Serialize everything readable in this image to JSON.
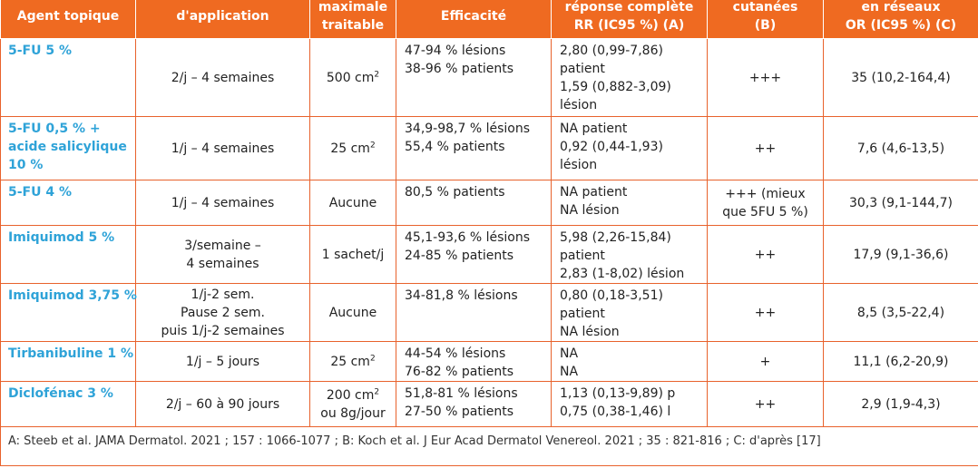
{
  "headers": [
    {
      "lines": [
        "Agent topique"
      ]
    },
    {
      "lines": [
        "d'application"
      ]
    },
    {
      "lines": [
        "maximale",
        "traitable"
      ]
    },
    {
      "lines": [
        "Efficacité"
      ]
    },
    {
      "lines": [
        "réponse complète",
        "RR (IC95 %) (A)"
      ]
    },
    {
      "lines": [
        "cutanées",
        "(B)"
      ]
    },
    {
      "lines": [
        "en réseaux",
        "OR (IC95 %) (C)"
      ]
    }
  ],
  "rows": [
    {
      "agent": [
        "5-FU 5 %"
      ],
      "posology": [
        "2/j – 4 semaines"
      ],
      "surface": {
        "value": "500 cm",
        "sup": "2",
        "extra": ""
      },
      "efficacy": [
        "47-94 % lésions",
        "38-96 % patients"
      ],
      "response": [
        "2,80 (0,99-7,86)",
        "patient",
        "1,59 (0,882-3,09)",
        "lésion"
      ],
      "skin": [
        "+++"
      ],
      "network": "35 (10,2-164,4)"
    },
    {
      "agent": [
        "5-FU 0,5 % +",
        "acide salicylique",
        "10 %"
      ],
      "posology": [
        "1/j – 4 semaines"
      ],
      "surface": {
        "value": "25 cm",
        "sup": "2",
        "extra": ""
      },
      "efficacy": [
        "34,9-98,7 % lésions",
        "55,4 % patients"
      ],
      "response": [
        "NA patient",
        "0,92 (0,44-1,93)",
        "lésion"
      ],
      "skin": [
        "++"
      ],
      "network": "7,6 (4,6-13,5)"
    },
    {
      "agent": [
        "5-FU 4 %"
      ],
      "posology": [
        "1/j – 4 semaines"
      ],
      "surface": {
        "value": "Aucune",
        "sup": "",
        "extra": ""
      },
      "efficacy": [
        "80,5 % patients"
      ],
      "response": [
        "NA patient",
        "NA lésion"
      ],
      "skin": [
        "+++ (mieux",
        "que 5FU 5 %)"
      ],
      "network": "30,3 (9,1-144,7)"
    },
    {
      "agent": [
        "Imiquimod 5 %"
      ],
      "posology": [
        "3/semaine –",
        "4 semaines"
      ],
      "surface": {
        "value": "1 sachet/j",
        "sup": "",
        "extra": ""
      },
      "efficacy": [
        "45,1-93,6 % lésions",
        "24-85 % patients"
      ],
      "response": [
        "5,98 (2,26-15,84)",
        "patient",
        "2,83 (1-8,02) lésion"
      ],
      "skin": [
        "++"
      ],
      "network": "17,9 (9,1-36,6)"
    },
    {
      "agent": [
        "Imiquimod 3,75 %"
      ],
      "posology": [
        "1/j-2 sem.",
        "Pause 2 sem.",
        "puis 1/j-2 semaines"
      ],
      "surface": {
        "value": "Aucune",
        "sup": "",
        "extra": ""
      },
      "efficacy": [
        "34-81,8 % lésions"
      ],
      "response": [
        "0,80 (0,18-3,51)",
        "patient",
        "NA lésion"
      ],
      "skin": [
        "++"
      ],
      "network": "8,5 (3,5-22,4)"
    },
    {
      "agent": [
        "Tirbanibuline 1 %"
      ],
      "posology": [
        "1/j – 5 jours"
      ],
      "surface": {
        "value": "25 cm",
        "sup": "2",
        "extra": ""
      },
      "efficacy": [
        "44-54 % lésions",
        "76-82 % patients"
      ],
      "response": [
        "NA",
        "NA"
      ],
      "skin": [
        "+"
      ],
      "network": "11,1 (6,2-20,9)"
    },
    {
      "agent": [
        "Diclofénac 3 %"
      ],
      "posology": [
        "2/j – 60 à 90 jours"
      ],
      "surface": {
        "value": "200 cm",
        "sup": "2",
        "extra": "ou 8g/jour"
      },
      "efficacy": [
        "51,8-81 % lésions",
        "27-50 % patients"
      ],
      "response": [
        "1,13 (0,13-9,89) p",
        "0,75 (0,38-1,46) l"
      ],
      "skin": [
        "++"
      ],
      "network": "2,9 (1,9-4,3)"
    }
  ],
  "footnote": "A: Steeb et al. JAMA Dermatol. 2021 ; 157 : 1066-1077 ; B: Koch et al. J Eur Acad Dermatol Venereol. 2021 ; 35 : 821-816 ; C: d'après [17]"
}
